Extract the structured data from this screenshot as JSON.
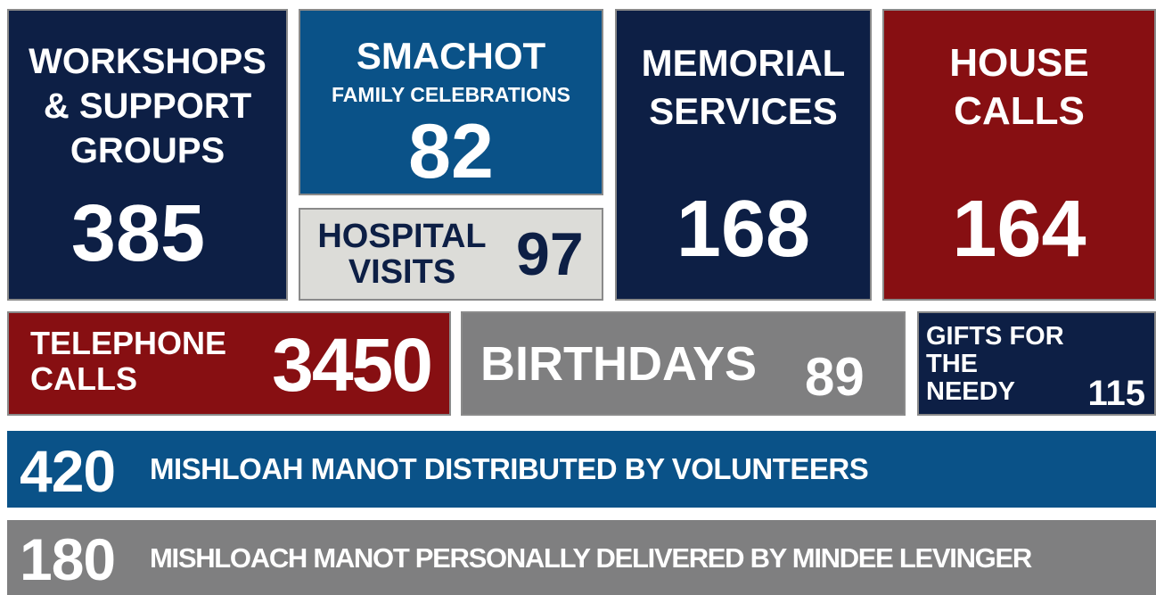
{
  "tiles": [
    {
      "title_lines": [
        "WORKSHOPS",
        "& SUPPORT",
        "GROUPS"
      ],
      "value": 385
    },
    {
      "title_lines": [
        "SMACHOT"
      ],
      "subtitle": "FAMILY CELEBRATIONS",
      "value": 82
    },
    {
      "title_lines": [
        "HOSPITAL",
        "VISITS"
      ],
      "value": 97
    },
    {
      "title_lines": [
        "MEMORIAL",
        "SERVICES"
      ],
      "value": 168
    },
    {
      "title_lines": [
        "HOUSE",
        "CALLS"
      ],
      "value": 164
    },
    {
      "title_lines": [
        "TELEPHONE",
        "CALLS"
      ],
      "value": 3450
    },
    {
      "title_lines": [
        "BIRTHDAYS"
      ],
      "value": 89
    },
    {
      "title_lines": [
        "GIFTS FOR",
        "THE",
        "NEEDY"
      ],
      "value": 115
    }
  ],
  "banners": [
    {
      "value": 420,
      "text": "MISHLOAH MANOT DISTRIBUTED BY VOLUNTEERS"
    },
    {
      "value": 180,
      "text": "MISHLOACH MANOT PERSONALLY DELIVERED BY MINDEE LEVINGER"
    }
  ]
}
